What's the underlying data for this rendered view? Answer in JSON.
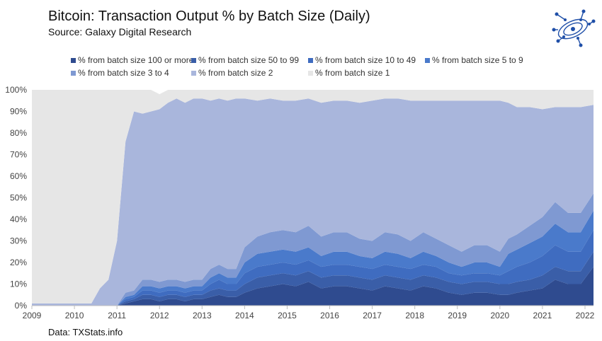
{
  "header": {
    "title": "Bitcoin: Transaction Output % by Batch Size (Daily)",
    "subtitle": "Source: Galaxy Digital Research"
  },
  "footer": {
    "source": "Data: TXStats.info"
  },
  "logo": {
    "icon": "galaxy-digital-logo-icon",
    "color": "#1f4fa8"
  },
  "chart_data": {
    "type": "area",
    "stacked": true,
    "title": "Bitcoin: Transaction Output % by Batch Size (Daily)",
    "subtitle": "Source: Galaxy Digital Research",
    "xlabel": "",
    "ylabel": "",
    "x_ticks": [
      "2009",
      "2010",
      "2011",
      "2012",
      "2013",
      "2014",
      "2015",
      "2016",
      "2017",
      "2018",
      "2019",
      "2020",
      "2021",
      "2022"
    ],
    "y_ticks": [
      "0%",
      "10%",
      "20%",
      "30%",
      "40%",
      "50%",
      "60%",
      "70%",
      "80%",
      "90%",
      "100%"
    ],
    "ylim": [
      0,
      100
    ],
    "xlim": [
      2009.0,
      2022.2
    ],
    "grid": false,
    "legend_position": "top",
    "x": [
      2009.0,
      2010.4,
      2010.6,
      2010.8,
      2011.0,
      2011.2,
      2011.4,
      2011.6,
      2011.8,
      2012.0,
      2012.2,
      2012.4,
      2012.6,
      2012.8,
      2013.0,
      2013.2,
      2013.4,
      2013.6,
      2013.8,
      2014.0,
      2014.3,
      2014.6,
      2014.9,
      2015.2,
      2015.5,
      2015.8,
      2016.1,
      2016.4,
      2016.7,
      2017.0,
      2017.3,
      2017.6,
      2017.9,
      2018.2,
      2018.5,
      2018.8,
      2019.1,
      2019.4,
      2019.7,
      2020.0,
      2020.2,
      2020.4,
      2020.7,
      2021.0,
      2021.3,
      2021.6,
      2021.9,
      2022.2
    ],
    "series": [
      {
        "name": "% from batch size 100 or more",
        "color": "#2f4b8f",
        "values": [
          0,
          0,
          0,
          0,
          0,
          1,
          2,
          3,
          3,
          2,
          3,
          3,
          2,
          3,
          3,
          4,
          5,
          4,
          4,
          6,
          8,
          9,
          10,
          9,
          11,
          8,
          9,
          9,
          8,
          7,
          9,
          8,
          7,
          9,
          8,
          6,
          5,
          6,
          6,
          5,
          5,
          6,
          7,
          8,
          12,
          10,
          10,
          18
        ]
      },
      {
        "name": "% from batch size 50 to 99",
        "color": "#3a5ea8",
        "values": [
          0,
          0,
          0,
          0,
          0,
          1,
          1,
          2,
          2,
          2,
          2,
          2,
          2,
          2,
          2,
          3,
          3,
          3,
          3,
          4,
          5,
          5,
          5,
          5,
          5,
          5,
          5,
          5,
          5,
          5,
          5,
          5,
          5,
          5,
          5,
          5,
          5,
          5,
          5,
          5,
          5,
          5,
          5,
          6,
          6,
          6,
          6,
          7
        ]
      },
      {
        "name": "% from batch size 10 to 49",
        "color": "#3f6cc0",
        "values": [
          0,
          0,
          0,
          0,
          0,
          1,
          1,
          2,
          2,
          2,
          2,
          2,
          2,
          2,
          2,
          3,
          4,
          3,
          3,
          5,
          5,
          5,
          5,
          5,
          5,
          5,
          5,
          5,
          5,
          5,
          5,
          5,
          5,
          5,
          5,
          4,
          4,
          4,
          4,
          4,
          6,
          7,
          8,
          9,
          10,
          9,
          9,
          10
        ]
      },
      {
        "name": "% from batch size 5 to 9",
        "color": "#4a7acb",
        "values": [
          0,
          0,
          0,
          0,
          0,
          1,
          1,
          2,
          2,
          2,
          2,
          2,
          2,
          2,
          2,
          3,
          3,
          3,
          3,
          5,
          6,
          6,
          6,
          6,
          6,
          5,
          6,
          6,
          5,
          5,
          6,
          6,
          5,
          6,
          5,
          5,
          4,
          5,
          5,
          4,
          8,
          8,
          9,
          9,
          10,
          9,
          9,
          9
        ]
      },
      {
        "name": "% from batch size 3 to 4",
        "color": "#7f99d2",
        "values": [
          0,
          0,
          0,
          0,
          0,
          2,
          2,
          3,
          3,
          3,
          3,
          3,
          3,
          3,
          3,
          4,
          4,
          4,
          4,
          7,
          8,
          9,
          9,
          9,
          10,
          9,
          9,
          9,
          8,
          8,
          9,
          9,
          8,
          9,
          8,
          8,
          7,
          8,
          8,
          7,
          7,
          7,
          8,
          9,
          10,
          9,
          9,
          8
        ]
      },
      {
        "name": "% from batch size 2",
        "color": "#a9b6dc",
        "values": [
          1,
          1,
          8,
          12,
          30,
          70,
          83,
          77,
          78,
          80,
          82,
          84,
          83,
          84,
          84,
          78,
          77,
          78,
          79,
          69,
          63,
          62,
          60,
          61,
          59,
          62,
          61,
          61,
          63,
          65,
          62,
          63,
          65,
          61,
          64,
          67,
          70,
          67,
          67,
          70,
          63,
          59,
          55,
          50,
          44,
          49,
          49,
          41
        ]
      },
      {
        "name": "% from batch size 1",
        "color": "#e6e6e6",
        "values": [
          99,
          99,
          92,
          88,
          70,
          24,
          10,
          11,
          10,
          7,
          6,
          4,
          6,
          4,
          4,
          5,
          4,
          5,
          4,
          4,
          5,
          4,
          5,
          5,
          4,
          6,
          5,
          5,
          6,
          5,
          4,
          4,
          5,
          5,
          5,
          5,
          5,
          5,
          5,
          5,
          6,
          8,
          8,
          9,
          8,
          8,
          8,
          7
        ]
      }
    ]
  }
}
